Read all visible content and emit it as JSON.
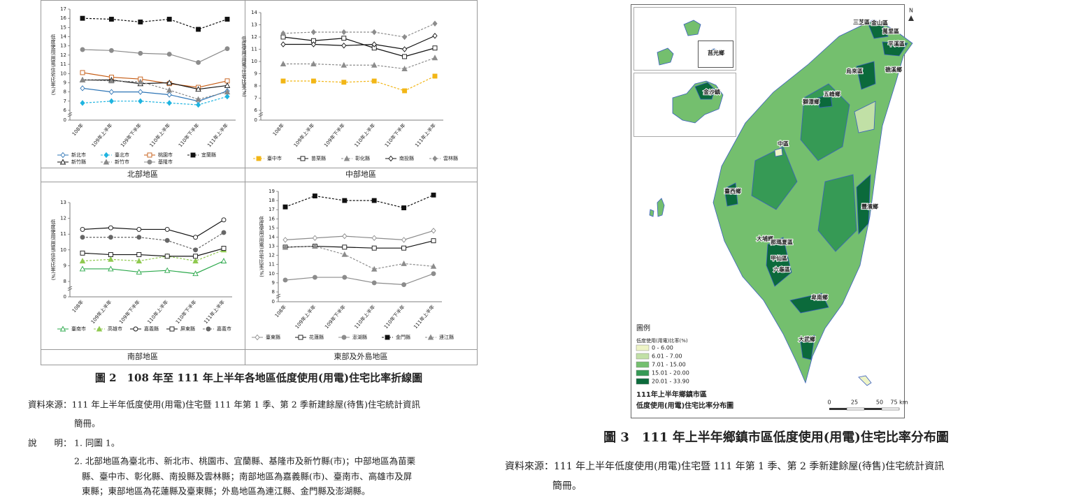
{
  "chart_data": [
    {
      "type": "line",
      "title": "北部地區",
      "ylabel": "低度使用(用電)住宅比率(%)",
      "categories": [
        "108年",
        "109年上半年",
        "109年下半年",
        "110年上半年",
        "110年下半年",
        "111年上半年"
      ],
      "ylim": [
        0,
        17
      ],
      "yticks": [
        0,
        6,
        7,
        8,
        9,
        10,
        11,
        12,
        13,
        14,
        15,
        16,
        17
      ],
      "axis_break": [
        0,
        6
      ],
      "grid": false,
      "series": [
        {
          "name": "新北市",
          "color": "#2e75b6",
          "marker": "diamond",
          "filled": false,
          "dash": false,
          "values": [
            8.4,
            8.0,
            8.0,
            7.7,
            7.0,
            8.1
          ]
        },
        {
          "name": "臺北市",
          "color": "#1fb4e0",
          "marker": "diamond",
          "filled": true,
          "dash": true,
          "values": [
            6.8,
            7.0,
            7.0,
            6.8,
            6.6,
            7.5
          ]
        },
        {
          "name": "桃園市",
          "color": "#c55a11",
          "marker": "square",
          "filled": false,
          "dash": false,
          "values": [
            10.1,
            9.6,
            9.4,
            8.9,
            8.5,
            9.2
          ]
        },
        {
          "name": "宜蘭縣",
          "color": "#111111",
          "marker": "square",
          "filled": true,
          "dash": true,
          "values": [
            16.0,
            15.9,
            15.6,
            15.9,
            14.8,
            15.9
          ]
        },
        {
          "name": "新竹縣",
          "color": "#111111",
          "marker": "triangle",
          "filled": false,
          "dash": false,
          "values": [
            9.3,
            9.3,
            8.9,
            9.0,
            8.3,
            8.7
          ]
        },
        {
          "name": "新竹市",
          "color": "#888888",
          "marker": "triangle",
          "filled": true,
          "dash": true,
          "values": [
            9.3,
            9.2,
            9.1,
            8.2,
            7.2,
            8.0
          ]
        },
        {
          "name": "基隆市",
          "color": "#8c8c8c",
          "marker": "circle",
          "filled": true,
          "dash": false,
          "values": [
            12.6,
            12.5,
            12.2,
            12.1,
            11.2,
            12.7
          ]
        }
      ]
    },
    {
      "type": "line",
      "title": "中部地區",
      "ylabel": "低度使用(用電)住宅比率(%)",
      "categories": [
        "108年",
        "109年上半年",
        "109年下半年",
        "110年上半年",
        "110年下半年",
        "111年上半年"
      ],
      "ylim": [
        0,
        14
      ],
      "yticks": [
        0,
        6,
        7,
        8,
        9,
        10,
        11,
        12,
        13,
        14
      ],
      "axis_break": [
        0,
        6
      ],
      "grid": false,
      "series": [
        {
          "name": "臺中市",
          "color": "#f2b616",
          "marker": "square",
          "filled": true,
          "dash": true,
          "values": [
            8.4,
            8.4,
            8.3,
            8.4,
            7.6,
            8.8
          ]
        },
        {
          "name": "苗栗縣",
          "color": "#111111",
          "marker": "square",
          "filled": false,
          "dash": false,
          "values": [
            12.0,
            11.7,
            11.9,
            11.1,
            10.4,
            11.1
          ]
        },
        {
          "name": "彰化縣",
          "color": "#8c8c8c",
          "marker": "triangle",
          "filled": true,
          "dash": true,
          "values": [
            9.8,
            9.8,
            9.7,
            9.7,
            9.4,
            10.3
          ]
        },
        {
          "name": "南投縣",
          "color": "#111111",
          "marker": "diamond",
          "filled": false,
          "dash": false,
          "values": [
            11.4,
            11.4,
            11.3,
            11.4,
            11.0,
            12.1
          ]
        },
        {
          "name": "雲林縣",
          "color": "#8c8c8c",
          "marker": "diamond",
          "filled": true,
          "dash": true,
          "values": [
            12.3,
            12.4,
            12.4,
            12.4,
            12.0,
            13.1
          ]
        }
      ]
    },
    {
      "type": "line",
      "title": "南部地區",
      "ylabel": "低度使用(用電)住宅比率(%)",
      "categories": [
        "108年",
        "109年上半年",
        "109年下半年",
        "110年上半年",
        "110年下半年",
        "111年上半年"
      ],
      "ylim": [
        0,
        13
      ],
      "yticks": [
        0,
        8,
        9,
        10,
        11,
        12,
        13
      ],
      "axis_break": [
        0,
        8
      ],
      "grid": false,
      "series": [
        {
          "name": "臺南市",
          "color": "#2aa84a",
          "marker": "triangle",
          "filled": false,
          "dash": false,
          "values": [
            8.8,
            8.8,
            8.6,
            8.7,
            8.5,
            9.3
          ]
        },
        {
          "name": "高雄市",
          "color": "#8fc94f",
          "marker": "triangle",
          "filled": true,
          "dash": true,
          "values": [
            9.3,
            9.4,
            9.3,
            9.6,
            9.3,
            10.0
          ]
        },
        {
          "name": "嘉義縣",
          "color": "#111111",
          "marker": "circle",
          "filled": false,
          "dash": false,
          "values": [
            11.3,
            11.4,
            11.3,
            11.3,
            10.8,
            11.9
          ]
        },
        {
          "name": "屏東縣",
          "color": "#111111",
          "marker": "square",
          "filled": false,
          "dash": false,
          "values": [
            9.8,
            9.7,
            9.7,
            9.6,
            9.6,
            10.1
          ]
        },
        {
          "name": "嘉義市",
          "color": "#666666",
          "marker": "circle",
          "filled": true,
          "dash": true,
          "values": [
            10.8,
            10.8,
            10.8,
            10.6,
            10.0,
            11.1
          ]
        }
      ]
    },
    {
      "type": "line",
      "title": "東部及外島地區",
      "ylabel": "低度使用(用電)住宅比率(%)",
      "categories": [
        "108年",
        "109年上半年",
        "109年下半年",
        "110年上半年",
        "110年下半年",
        "111年上半年"
      ],
      "ylim": [
        0,
        19
      ],
      "yticks": [
        0,
        8,
        9,
        10,
        11,
        12,
        13,
        14,
        15,
        16,
        17,
        18,
        19
      ],
      "axis_break": [
        0,
        8
      ],
      "grid": false,
      "series": [
        {
          "name": "臺東縣",
          "color": "#8c8c8c",
          "marker": "diamond",
          "filled": false,
          "dash": false,
          "values": [
            13.7,
            13.9,
            14.1,
            13.9,
            13.7,
            14.7
          ]
        },
        {
          "name": "花蓮縣",
          "color": "#111111",
          "marker": "square",
          "filled": false,
          "dash": false,
          "values": [
            12.9,
            13.0,
            12.9,
            12.8,
            12.8,
            13.6
          ]
        },
        {
          "name": "澎湖縣",
          "color": "#8c8c8c",
          "marker": "circle",
          "filled": true,
          "dash": false,
          "values": [
            9.3,
            9.6,
            9.6,
            9.0,
            8.8,
            10.0
          ]
        },
        {
          "name": "金門縣",
          "color": "#111111",
          "marker": "square",
          "filled": true,
          "dash": true,
          "values": [
            17.3,
            18.5,
            18.0,
            18.0,
            17.2,
            18.6
          ]
        },
        {
          "name": "連江縣",
          "color": "#8c8c8c",
          "marker": "triangle",
          "filled": true,
          "dash": true,
          "values": [
            12.9,
            13.0,
            12.1,
            10.5,
            11.1,
            10.8
          ]
        }
      ]
    }
  ],
  "figure2": {
    "caption": "圖 2　108 年至 111 年上半年各地區低度使用(用電)住宅比率折線圖",
    "source": [
      "資料來源：111 年上半年低度使用(用電)住宅暨 111 年第 1 季、第 2 季新建餘屋(待售)住宅統計資訊",
      "簡冊。"
    ],
    "note_label": "說　　明：",
    "notes": [
      "1. 同圖 1。",
      "2. 北部地區為臺北市、新北市、桃園市、宜蘭縣、基隆市及新竹縣(市)；中部地區為苗栗",
      "縣、臺中市、彰化縣、南投縣及雲林縣；南部地區為嘉義縣(市)、臺南市、高雄市及屏",
      "東縣；東部地區為花蓮縣及臺東縣；外島地區為連江縣、金門縣及澎湖縣。"
    ]
  },
  "map": {
    "north": "N",
    "legend_title": "圖例",
    "legend_subtitle": "低度使用(用電)比率(%)",
    "legend": [
      {
        "label": "0 - 6.00",
        "color": "#eef4c6"
      },
      {
        "label": "6.01 - 7.00",
        "color": "#c1e0a6"
      },
      {
        "label": "7.01 - 15.00",
        "color": "#74bf6e"
      },
      {
        "label": "15.01 - 20.00",
        "color": "#369a55"
      },
      {
        "label": "20.01 - 33.90",
        "color": "#0b6a3b"
      }
    ],
    "title": [
      "111年上半年鄉鎮市區",
      "低度使用(用電)住宅比率分布圖"
    ],
    "scale": [
      "0",
      "25",
      "50",
      "75 km"
    ],
    "places": [
      "三芝區",
      "金山區",
      "萬里區",
      "平溪區",
      "烏來區",
      "礁溪鄉",
      "五峰鄉",
      "獅潭鄉",
      "中區",
      "臺西鄉",
      "豐濱鄉",
      "大埔鄉",
      "那瑪夏區",
      "甲仙區",
      "六龜區",
      "卑南鄉",
      "大武鄉",
      "莒光鄉",
      "金沙鎮"
    ]
  },
  "figure3": {
    "caption": "圖 3　111 年上半年鄉鎮市區低度使用(用電)住宅比率分布圖",
    "source": [
      "資料來源：111 年上半年低度使用(用電)住宅暨 111 年第 1 季、第 2 季新建餘屋(待售)住宅統計資訊",
      "簡冊。"
    ]
  }
}
